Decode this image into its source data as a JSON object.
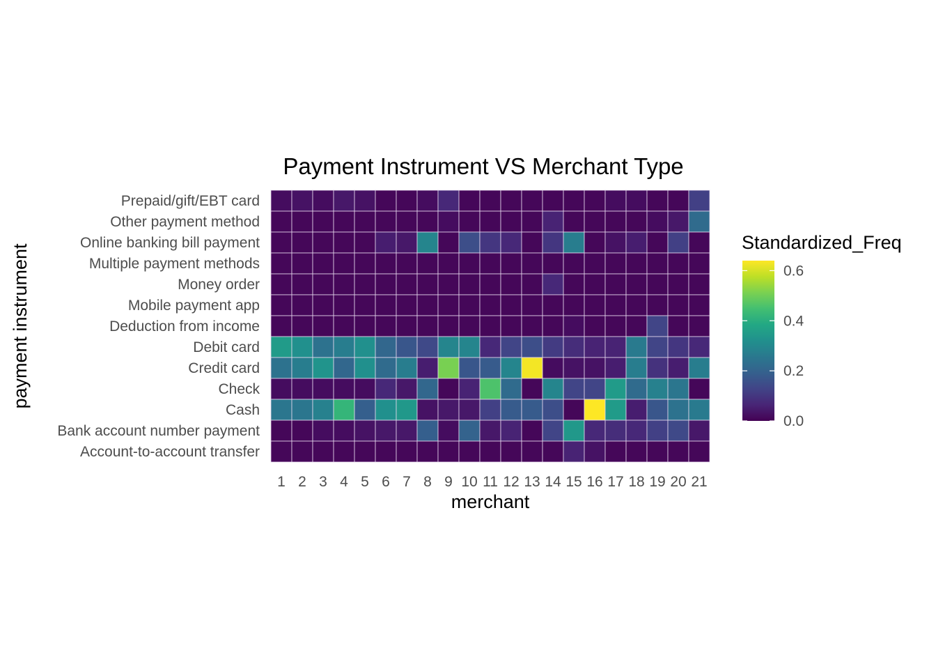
{
  "chart_data": {
    "type": "heatmap",
    "title": "Payment Instrument VS Merchant Type",
    "xlabel": "merchant",
    "ylabel": "payment instrument",
    "x": [
      "1",
      "2",
      "3",
      "4",
      "5",
      "6",
      "7",
      "8",
      "9",
      "10",
      "11",
      "12",
      "13",
      "14",
      "15",
      "16",
      "17",
      "18",
      "19",
      "20",
      "21"
    ],
    "y": [
      "Prepaid/gift/EBT card",
      "Other payment method",
      "Online banking bill payment",
      "Multiple payment methods",
      "Money order",
      "Mobile payment app",
      "Deduction from income",
      "Debit card",
      "Credit card",
      "Check",
      "Cash",
      "Bank account number payment",
      "Account-to-account transfer"
    ],
    "values": [
      [
        0.02,
        0.03,
        0.02,
        0.04,
        0.03,
        0.01,
        0.01,
        0.02,
        0.07,
        0.01,
        0.01,
        0.01,
        0.01,
        0.01,
        0.01,
        0.01,
        0.02,
        0.02,
        0.01,
        0.01,
        0.12
      ],
      [
        0.01,
        0.01,
        0.01,
        0.01,
        0.01,
        0.01,
        0.01,
        0.01,
        0.02,
        0.01,
        0.01,
        0.01,
        0.01,
        0.06,
        0.01,
        0.01,
        0.01,
        0.01,
        0.02,
        0.04,
        0.22
      ],
      [
        0.01,
        0.01,
        0.01,
        0.01,
        0.01,
        0.05,
        0.04,
        0.29,
        0.01,
        0.15,
        0.1,
        0.07,
        0.01,
        0.1,
        0.27,
        0.01,
        0.03,
        0.05,
        0.01,
        0.12,
        0.01
      ],
      [
        0.01,
        0.01,
        0.01,
        0.01,
        0.01,
        0.01,
        0.01,
        0.01,
        0.01,
        0.01,
        0.01,
        0.01,
        0.01,
        0.01,
        0.01,
        0.01,
        0.01,
        0.01,
        0.01,
        0.01,
        0.01
      ],
      [
        0.01,
        0.01,
        0.01,
        0.01,
        0.01,
        0.01,
        0.01,
        0.01,
        0.01,
        0.01,
        0.01,
        0.01,
        0.01,
        0.07,
        0.01,
        0.01,
        0.01,
        0.01,
        0.01,
        0.01,
        0.01
      ],
      [
        0.01,
        0.01,
        0.01,
        0.01,
        0.01,
        0.01,
        0.01,
        0.01,
        0.01,
        0.01,
        0.01,
        0.01,
        0.01,
        0.01,
        0.01,
        0.01,
        0.01,
        0.01,
        0.01,
        0.01,
        0.01
      ],
      [
        0.01,
        0.01,
        0.01,
        0.01,
        0.01,
        0.01,
        0.01,
        0.01,
        0.01,
        0.01,
        0.01,
        0.01,
        0.01,
        0.01,
        0.02,
        0.01,
        0.01,
        0.01,
        0.13,
        0.01,
        0.01
      ],
      [
        0.35,
        0.32,
        0.24,
        0.27,
        0.32,
        0.21,
        0.17,
        0.14,
        0.29,
        0.29,
        0.07,
        0.13,
        0.15,
        0.11,
        0.08,
        0.06,
        0.06,
        0.26,
        0.13,
        0.1,
        0.07
      ],
      [
        0.24,
        0.27,
        0.33,
        0.21,
        0.32,
        0.22,
        0.27,
        0.05,
        0.51,
        0.17,
        0.18,
        0.29,
        0.63,
        0.02,
        0.03,
        0.03,
        0.05,
        0.27,
        0.09,
        0.05,
        0.27
      ],
      [
        0.02,
        0.02,
        0.02,
        0.02,
        0.02,
        0.07,
        0.04,
        0.21,
        0.01,
        0.06,
        0.46,
        0.22,
        0.01,
        0.29,
        0.13,
        0.13,
        0.35,
        0.22,
        0.28,
        0.25,
        0.01
      ],
      [
        0.25,
        0.25,
        0.28,
        0.42,
        0.19,
        0.32,
        0.34,
        0.03,
        0.04,
        0.04,
        0.12,
        0.18,
        0.18,
        0.15,
        0.01,
        0.64,
        0.35,
        0.05,
        0.17,
        0.24,
        0.26
      ],
      [
        0.01,
        0.01,
        0.02,
        0.02,
        0.03,
        0.04,
        0.04,
        0.19,
        0.02,
        0.2,
        0.04,
        0.06,
        0.01,
        0.13,
        0.34,
        0.07,
        0.08,
        0.07,
        0.12,
        0.14,
        0.04
      ],
      [
        0.01,
        0.01,
        0.01,
        0.01,
        0.01,
        0.01,
        0.01,
        0.01,
        0.01,
        0.01,
        0.01,
        0.01,
        0.01,
        0.01,
        0.06,
        0.03,
        0.01,
        0.01,
        0.01,
        0.01,
        0.01
      ]
    ],
    "legend": {
      "title": "Standardized_Freq",
      "ticks": [
        "0.0",
        "0.2",
        "0.4",
        "0.6"
      ],
      "tick_values": [
        0,
        0.2,
        0.4,
        0.6
      ],
      "range": [
        0,
        0.64
      ],
      "placement": "right",
      "colormap": "viridis"
    },
    "cell_border_color": "#e6d9ee"
  }
}
